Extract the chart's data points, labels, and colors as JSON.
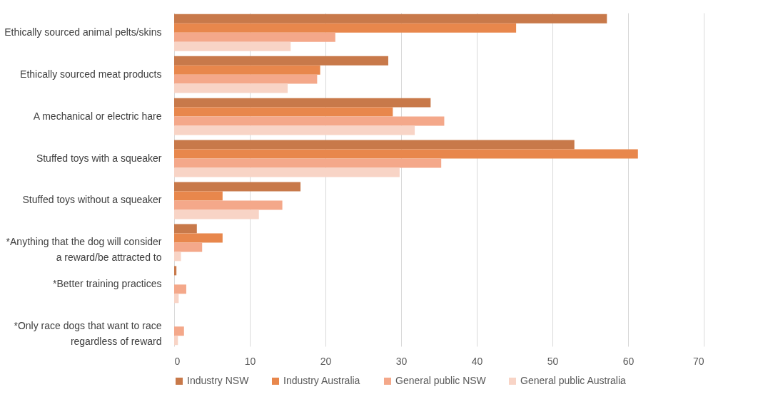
{
  "chart_data": {
    "type": "bar",
    "orientation": "horizontal",
    "categories": [
      "Ethically sourced animal pelts/skins",
      "Ethically sourced meat products",
      "A mechanical or electric hare",
      "Stuffed toys with a squeaker",
      "Stuffed toys without a squeaker",
      "*Anything that the dog will consider a reward/be attracted to",
      "*Better training practices",
      "*Only race dogs that want to race regardless of reward"
    ],
    "series": [
      {
        "name": "Industry NSW",
        "color": "#c8794a",
        "values": [
          57.2,
          28.3,
          33.9,
          52.9,
          16.7,
          3.0,
          0.3,
          0
        ]
      },
      {
        "name": "Industry Australia",
        "color": "#e8874c",
        "values": [
          45.2,
          19.3,
          28.9,
          61.3,
          6.4,
          6.4,
          0,
          0
        ]
      },
      {
        "name": "General public NSW",
        "color": "#f4a88a",
        "values": [
          21.3,
          18.9,
          35.7,
          35.3,
          14.3,
          3.7,
          1.6,
          1.3
        ]
      },
      {
        "name": "General public Australia",
        "color": "#f8d4c6",
        "values": [
          15.4,
          15,
          31.8,
          29.8,
          11.2,
          0.9,
          0.6,
          0.5
        ]
      }
    ],
    "xlim": [
      0,
      70
    ],
    "xticks": [
      0,
      10,
      20,
      30,
      40,
      50,
      60,
      70
    ],
    "grid": "x",
    "legend": "bottom"
  }
}
